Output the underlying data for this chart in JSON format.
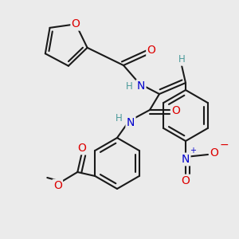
{
  "bg_color": "#ebebeb",
  "bond_color": "#1a1a1a",
  "bond_width": 1.5,
  "atom_colors": {
    "O": "#dd0000",
    "N": "#0000cc",
    "H": "#4a9a9a",
    "C": "#1a1a1a",
    "plus": "#0000cc",
    "minus": "#dd0000"
  },
  "font_size": 10,
  "font_size_H": 8.5
}
